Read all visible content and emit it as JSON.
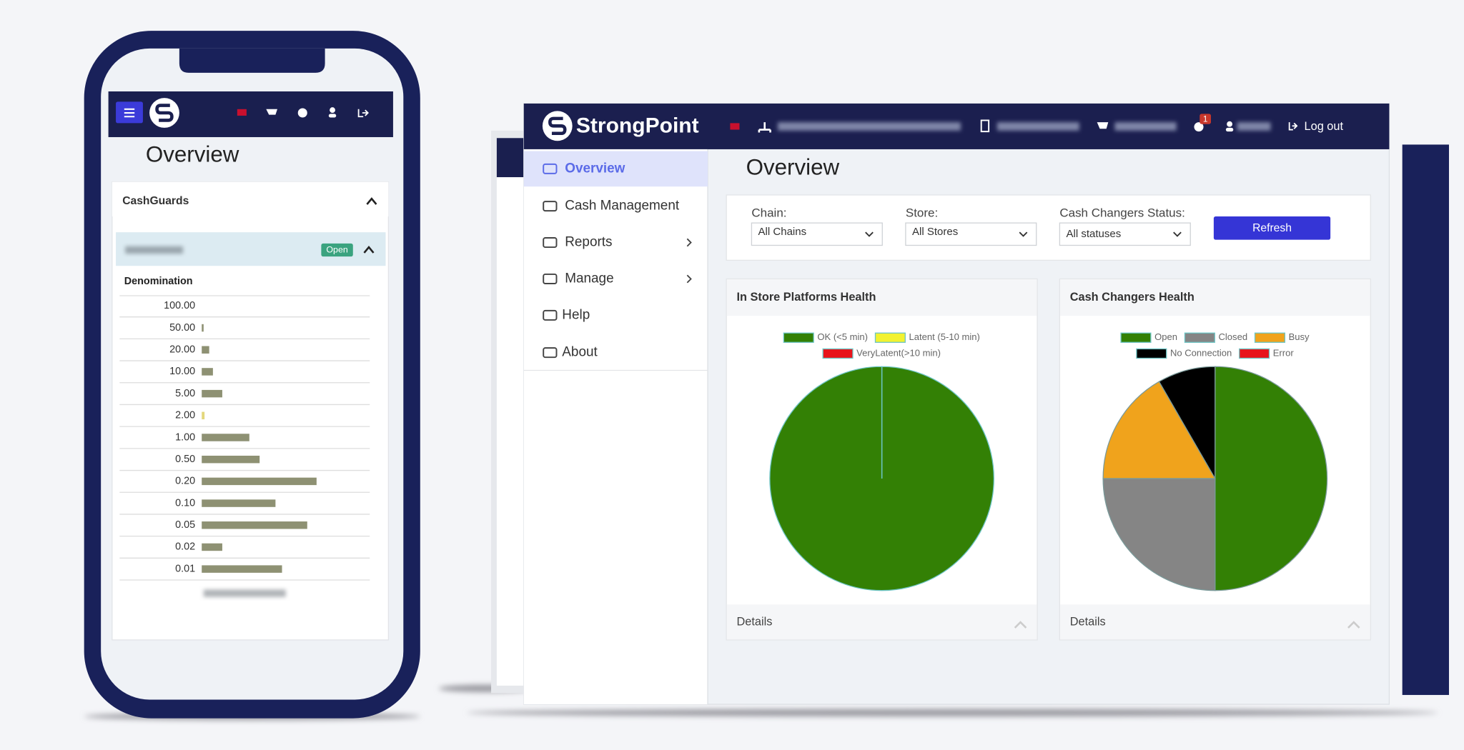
{
  "phone": {
    "page_title": "Overview",
    "section": "CashGuards",
    "status": "Open",
    "column": "Denomination"
  },
  "app": {
    "brand": "StrongPoint",
    "notification_count": 1,
    "logout": "Log out",
    "menu": [
      "Overview",
      "Cash Management",
      "Reports",
      "Manage",
      "Help",
      "About"
    ],
    "page_title": "Overview",
    "filters": [
      {
        "label": "Chain:",
        "value": "All Chains"
      },
      {
        "label": "Store:",
        "value": "All Stores"
      },
      {
        "label": "Cash Changers Status:",
        "value": "All statuses"
      }
    ],
    "refresh": "Refresh",
    "details": "Details"
  },
  "chart_data": [
    {
      "type": "bar",
      "orientation": "horizontal",
      "categories": [
        "100.00",
        "50.00",
        "20.00",
        "10.00",
        "5.00",
        "2.00",
        "1.00",
        "0.50",
        "0.20",
        "0.10",
        "0.05",
        "0.02",
        "0.01"
      ],
      "values": [
        0,
        2,
        8,
        12,
        22,
        3,
        51,
        62,
        123,
        79,
        113,
        22,
        86
      ],
      "colors": [
        "#8e9173",
        "#8e9173",
        "#8e9173",
        "#8e9173",
        "#8e9173",
        "#e3d77c",
        "#8e9173",
        "#8e9173",
        "#8e9173",
        "#8e9173",
        "#8e9173",
        "#8e9173",
        "#8e9173"
      ]
    },
    {
      "type": "pie",
      "title": "In Store Platforms Health",
      "categories": [
        "OK (<5 min)",
        "Latent (5-10 min)",
        "VeryLatent(>10 min)"
      ],
      "values": [
        100,
        0,
        0
      ],
      "colors": [
        "#338005",
        "#f2f230",
        "#e8141b"
      ],
      "stroke": "#6cc4c4"
    },
    {
      "type": "pie",
      "title": "Cash Changers Health",
      "categories": [
        "Open",
        "Closed",
        "Busy",
        "No Connection",
        "Error"
      ],
      "values": [
        6,
        3,
        2,
        1,
        0
      ],
      "colors": [
        "#338005",
        "#858585",
        "#f0a31c",
        "#000000",
        "#e8141b"
      ],
      "stroke": "#7a9a9a"
    }
  ]
}
